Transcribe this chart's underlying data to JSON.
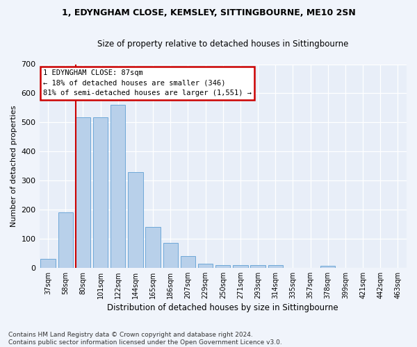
{
  "title_line1": "1, EDYNGHAM CLOSE, KEMSLEY, SITTINGBOURNE, ME10 2SN",
  "title_line2": "Size of property relative to detached houses in Sittingbourne",
  "xlabel": "Distribution of detached houses by size in Sittingbourne",
  "ylabel": "Number of detached properties",
  "categories": [
    "37sqm",
    "58sqm",
    "80sqm",
    "101sqm",
    "122sqm",
    "144sqm",
    "165sqm",
    "186sqm",
    "207sqm",
    "229sqm",
    "250sqm",
    "271sqm",
    "293sqm",
    "314sqm",
    "335sqm",
    "357sqm",
    "378sqm",
    "399sqm",
    "421sqm",
    "442sqm",
    "463sqm"
  ],
  "values": [
    30,
    190,
    518,
    518,
    560,
    328,
    140,
    85,
    40,
    13,
    10,
    8,
    8,
    10,
    0,
    0,
    7,
    0,
    0,
    0,
    0
  ],
  "bar_color": "#b8d0ea",
  "bar_edge_color": "#6ea8d8",
  "plot_bg_color": "#e8eef8",
  "fig_bg_color": "#f0f4fb",
  "grid_color": "#ffffff",
  "annotation_text": "1 EDYNGHAM CLOSE: 87sqm\n← 18% of detached houses are smaller (346)\n81% of semi-detached houses are larger (1,551) →",
  "annotation_box_facecolor": "#ffffff",
  "annotation_box_edgecolor": "#cc0000",
  "vline_color": "#cc0000",
  "vline_x_index": 2,
  "footnote_line1": "Contains HM Land Registry data © Crown copyright and database right 2024.",
  "footnote_line2": "Contains public sector information licensed under the Open Government Licence v3.0.",
  "ylim": [
    0,
    700
  ],
  "yticks": [
    0,
    100,
    200,
    300,
    400,
    500,
    600,
    700
  ]
}
